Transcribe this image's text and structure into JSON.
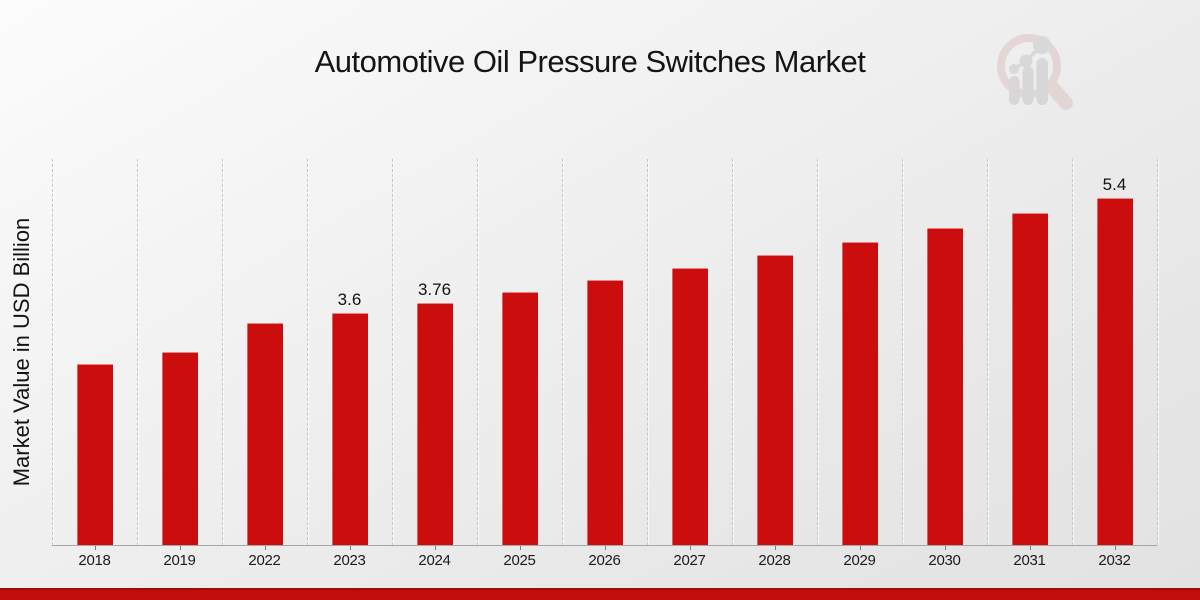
{
  "header": {
    "title": "Automotive Oil Pressure Switches Market"
  },
  "axes": {
    "y_title": "Market Value in USD Billion"
  },
  "colors": {
    "bar": "#cc0d0d",
    "bottom_band": "#c20d0d",
    "bottom_band_edge": "#9e0b0b",
    "gridline": "#c5c5c5",
    "axis_line": "#a6a6a6",
    "text": "#141414",
    "watermark_pink": "#ddbfbf",
    "watermark_gray": "#c3c3c7"
  },
  "watermark": {
    "icon": "magnifier-bar-chart-logo"
  },
  "chart_data": {
    "type": "bar",
    "title": "Automotive Oil Pressure Switches Market",
    "xlabel": "",
    "ylabel": "Market Value in USD Billion",
    "categories": [
      "2018",
      "2019",
      "2022",
      "2023",
      "2024",
      "2025",
      "2026",
      "2027",
      "2028",
      "2029",
      "2030",
      "2031",
      "2032"
    ],
    "values": [
      2.82,
      3.0,
      3.45,
      3.6,
      3.76,
      3.93,
      4.12,
      4.31,
      4.51,
      4.71,
      4.93,
      5.16,
      5.4
    ],
    "value_labels": {
      "2023": "3.6",
      "2024": "3.76",
      "2032": "5.4"
    },
    "ylim": [
      0,
      6
    ],
    "grid": "vertical-dashed",
    "legend": "none",
    "bar_color": "#cc0d0d"
  }
}
